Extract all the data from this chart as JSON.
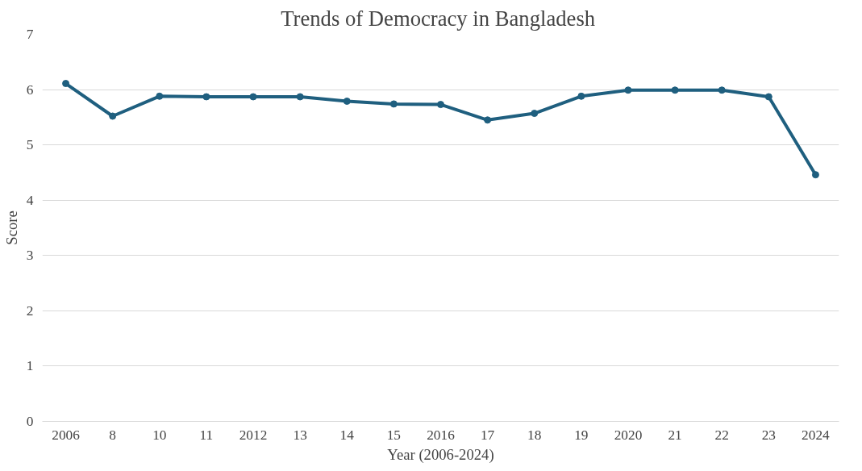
{
  "chart_data": {
    "type": "line",
    "title": "Trends of Democracy  in Bangladesh",
    "xlabel": "Year (2006-2024)",
    "ylabel": "Score",
    "categories": [
      "2006",
      "8",
      "10",
      "11",
      "2012",
      "13",
      "14",
      "15",
      "2016",
      "17",
      "18",
      "19",
      "2020",
      "21",
      "22",
      "23",
      "2024"
    ],
    "series": [
      {
        "color": "#1f5f7f",
        "values": [
          6.11,
          5.52,
          5.88,
          5.87,
          5.87,
          5.87,
          5.79,
          5.74,
          5.73,
          5.45,
          5.57,
          5.88,
          5.99,
          5.99,
          5.99,
          5.87,
          4.46
        ]
      }
    ],
    "ylim": [
      0,
      7
    ],
    "yticks": [
      0,
      1,
      2,
      3,
      4,
      5,
      6,
      7
    ],
    "grid": "y",
    "marker": "circle",
    "line_style": "solid"
  }
}
